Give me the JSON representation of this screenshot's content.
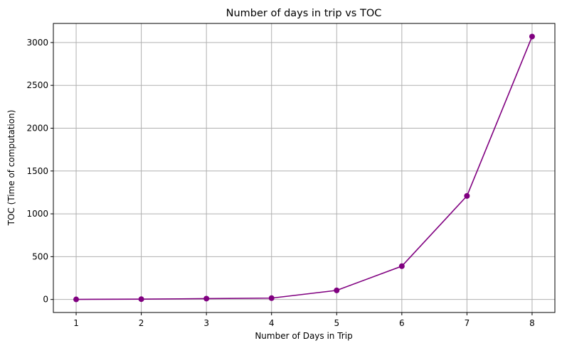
{
  "chart_data": {
    "type": "line",
    "title": "Number of days in trip vs TOC",
    "xlabel": "Number of Days in Trip",
    "ylabel": "TOC (Time of computation)",
    "x": [
      1,
      2,
      3,
      4,
      5,
      6,
      7,
      8
    ],
    "series": [
      {
        "values": [
          1,
          4,
          10,
          16,
          106,
          389,
          1209,
          3070
        ],
        "color": "#800080",
        "marker": "circle"
      }
    ],
    "xticks": [
      "1",
      "2",
      "3",
      "4",
      "5",
      "6",
      "7",
      "8"
    ],
    "yticks": [
      "0",
      "500",
      "1000",
      "1500",
      "2000",
      "2500",
      "3000"
    ],
    "xlim": [
      0.65,
      8.35
    ],
    "ylim": [
      -152,
      3223
    ],
    "grid": true,
    "grid_color": "#b0b0b0"
  }
}
